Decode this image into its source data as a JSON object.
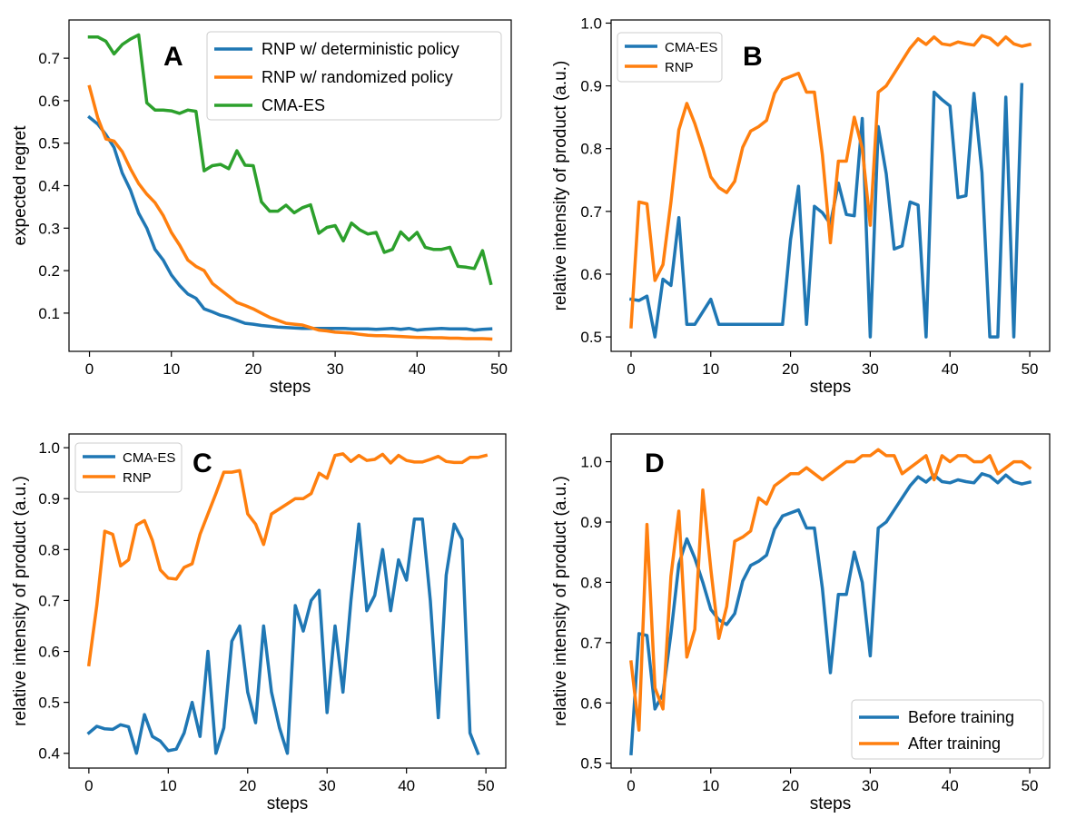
{
  "colors": {
    "blue": "#1f77b4",
    "orange": "#ff7f0e",
    "green": "#2ca02c"
  },
  "chart_data": [
    {
      "panel": "A",
      "type": "line",
      "xlabel": "steps",
      "ylabel": "expected regret",
      "xlim": [
        -2.5,
        51.5
      ],
      "ylim": [
        0.01,
        0.79
      ],
      "xticks": [
        0,
        10,
        20,
        30,
        40,
        50
      ],
      "yticks": [
        0.1,
        0.2,
        0.3,
        0.4,
        0.5,
        0.6,
        0.7
      ],
      "ytick_labels": [
        "0.1",
        "0.2",
        "0.3",
        "0.4",
        "0.5",
        "0.6",
        "0.7"
      ],
      "legend_position": "top-right",
      "series": [
        {
          "name": "RNP w/ deterministic policy",
          "color": "#1f77b4",
          "x": [
            0,
            1,
            2,
            3,
            4,
            5,
            6,
            7,
            8,
            9,
            10,
            11,
            12,
            13,
            14,
            15,
            16,
            17,
            18,
            19,
            20,
            21,
            22,
            23,
            24,
            25,
            26,
            27,
            28,
            29,
            30,
            31,
            32,
            33,
            34,
            35,
            36,
            37,
            38,
            39,
            40,
            41,
            42,
            43,
            44,
            45,
            46,
            47,
            48,
            49
          ],
          "y": [
            0.561,
            0.545,
            0.52,
            0.49,
            0.43,
            0.39,
            0.335,
            0.3,
            0.25,
            0.225,
            0.19,
            0.165,
            0.145,
            0.135,
            0.11,
            0.103,
            0.095,
            0.09,
            0.083,
            0.076,
            0.074,
            0.071,
            0.069,
            0.067,
            0.066,
            0.065,
            0.064,
            0.064,
            0.064,
            0.064,
            0.064,
            0.064,
            0.063,
            0.063,
            0.063,
            0.062,
            0.063,
            0.064,
            0.062,
            0.064,
            0.06,
            0.062,
            0.063,
            0.064,
            0.063,
            0.063,
            0.063,
            0.06,
            0.062,
            0.063
          ]
        },
        {
          "name": "RNP w/ randomized policy",
          "color": "#ff7f0e",
          "x": [
            0,
            1,
            2,
            3,
            4,
            5,
            6,
            7,
            8,
            9,
            10,
            11,
            12,
            13,
            14,
            15,
            16,
            17,
            18,
            19,
            20,
            21,
            22,
            23,
            24,
            25,
            26,
            27,
            28,
            29,
            30,
            31,
            32,
            33,
            34,
            35,
            36,
            37,
            38,
            39,
            40,
            41,
            42,
            43,
            44,
            45,
            46,
            47,
            48,
            49
          ],
          "y": [
            0.633,
            0.56,
            0.51,
            0.505,
            0.48,
            0.44,
            0.405,
            0.38,
            0.36,
            0.33,
            0.29,
            0.26,
            0.225,
            0.21,
            0.2,
            0.17,
            0.155,
            0.14,
            0.125,
            0.118,
            0.11,
            0.1,
            0.09,
            0.083,
            0.076,
            0.074,
            0.072,
            0.066,
            0.06,
            0.058,
            0.055,
            0.054,
            0.053,
            0.05,
            0.048,
            0.047,
            0.047,
            0.046,
            0.045,
            0.044,
            0.043,
            0.043,
            0.042,
            0.042,
            0.041,
            0.041,
            0.04,
            0.04,
            0.04,
            0.039
          ]
        },
        {
          "name": "CMA-ES",
          "color": "#2ca02c",
          "x": [
            0,
            1,
            2,
            3,
            4,
            5,
            6,
            7,
            8,
            9,
            10,
            11,
            12,
            13,
            14,
            15,
            16,
            17,
            18,
            19,
            20,
            21,
            22,
            23,
            24,
            25,
            26,
            27,
            28,
            29,
            30,
            31,
            32,
            33,
            34,
            35,
            36,
            37,
            38,
            39,
            40,
            41,
            42,
            43,
            44,
            45,
            46,
            47,
            48,
            49
          ],
          "y": [
            0.75,
            0.75,
            0.74,
            0.71,
            0.732,
            0.745,
            0.755,
            0.595,
            0.578,
            0.578,
            0.576,
            0.57,
            0.578,
            0.575,
            0.435,
            0.447,
            0.45,
            0.44,
            0.482,
            0.448,
            0.447,
            0.362,
            0.34,
            0.34,
            0.354,
            0.336,
            0.348,
            0.355,
            0.288,
            0.302,
            0.306,
            0.27,
            0.312,
            0.296,
            0.286,
            0.29,
            0.243,
            0.25,
            0.291,
            0.272,
            0.29,
            0.255,
            0.25,
            0.25,
            0.255,
            0.21,
            0.208,
            0.205,
            0.247,
            0.17
          ]
        }
      ]
    },
    {
      "panel": "B",
      "type": "line",
      "xlabel": "steps",
      "ylabel": "relative intensity of product (a.u.)",
      "xlim": [
        -2.5,
        52.5
      ],
      "ylim": [
        0.477,
        1.005
      ],
      "xticks": [
        0,
        10,
        20,
        30,
        40,
        50
      ],
      "yticks": [
        0.5,
        0.6,
        0.7,
        0.8,
        0.9,
        1.0
      ],
      "ytick_labels": [
        "0.5",
        "0.6",
        "0.7",
        "0.8",
        "0.9",
        "1.0"
      ],
      "legend_position": "top-left",
      "series": [
        {
          "name": "CMA-ES",
          "color": "#1f77b4",
          "x": [
            0,
            1,
            2,
            3,
            4,
            5,
            6,
            7,
            8,
            9,
            10,
            11,
            12,
            13,
            14,
            15,
            16,
            17,
            18,
            19,
            20,
            21,
            22,
            23,
            24,
            25,
            26,
            27,
            28,
            29,
            30,
            31,
            32,
            33,
            34,
            35,
            36,
            37,
            38,
            39,
            40,
            41,
            42,
            43,
            44,
            45,
            46,
            47,
            48,
            49
          ],
          "y": [
            0.56,
            0.558,
            0.565,
            0.5,
            0.592,
            0.582,
            0.69,
            0.52,
            0.52,
            0.54,
            0.56,
            0.52,
            0.52,
            0.52,
            0.52,
            0.52,
            0.52,
            0.52,
            0.52,
            0.52,
            0.655,
            0.74,
            0.52,
            0.708,
            0.698,
            0.68,
            0.745,
            0.695,
            0.693,
            0.848,
            0.5,
            0.835,
            0.76,
            0.64,
            0.645,
            0.715,
            0.71,
            0.5,
            0.89,
            0.878,
            0.868,
            0.722,
            0.725,
            0.888,
            0.762,
            0.5,
            0.5,
            0.882,
            0.5,
            0.902
          ]
        },
        {
          "name": "RNP",
          "color": "#ff7f0e",
          "x": [
            0,
            1,
            2,
            3,
            4,
            5,
            6,
            7,
            8,
            9,
            10,
            11,
            12,
            13,
            14,
            15,
            16,
            17,
            18,
            19,
            20,
            21,
            22,
            23,
            24,
            25,
            26,
            27,
            28,
            29,
            30,
            31,
            32,
            33,
            34,
            35,
            36,
            37,
            38,
            39,
            40,
            41,
            42,
            43,
            44,
            45,
            46,
            47,
            48,
            49,
            50
          ],
          "y": [
            0.516,
            0.715,
            0.712,
            0.59,
            0.615,
            0.715,
            0.83,
            0.872,
            0.84,
            0.8,
            0.755,
            0.738,
            0.73,
            0.748,
            0.802,
            0.828,
            0.835,
            0.845,
            0.888,
            0.91,
            0.915,
            0.92,
            0.89,
            0.89,
            0.79,
            0.65,
            0.78,
            0.78,
            0.85,
            0.8,
            0.678,
            0.89,
            0.9,
            0.92,
            0.94,
            0.96,
            0.975,
            0.966,
            0.978,
            0.967,
            0.965,
            0.97,
            0.967,
            0.965,
            0.98,
            0.976,
            0.965,
            0.978,
            0.967,
            0.963,
            0.966
          ]
        }
      ]
    },
    {
      "panel": "C",
      "type": "line",
      "xlabel": "steps",
      "ylabel": "relative intensity of product (a.u.)",
      "xlim": [
        -2.5,
        52.5
      ],
      "ylim": [
        0.371,
        1.027
      ],
      "xticks": [
        0,
        10,
        20,
        30,
        40,
        50
      ],
      "yticks": [
        0.4,
        0.5,
        0.6,
        0.7,
        0.8,
        0.9,
        1.0
      ],
      "ytick_labels": [
        "0.4",
        "0.5",
        "0.6",
        "0.7",
        "0.8",
        "0.9",
        "1.0"
      ],
      "legend_position": "top-left",
      "series": [
        {
          "name": "CMA-ES",
          "color": "#1f77b4",
          "x": [
            0,
            1,
            2,
            3,
            4,
            5,
            6,
            7,
            8,
            9,
            10,
            11,
            12,
            13,
            14,
            15,
            16,
            17,
            18,
            19,
            20,
            21,
            22,
            23,
            24,
            25,
            26,
            27,
            28,
            29,
            30,
            31,
            32,
            33,
            34,
            35,
            36,
            37,
            38,
            39,
            40,
            41,
            42,
            43,
            44,
            45,
            46,
            47,
            48,
            49
          ],
          "y": [
            0.44,
            0.453,
            0.448,
            0.447,
            0.456,
            0.452,
            0.4,
            0.476,
            0.433,
            0.424,
            0.405,
            0.408,
            0.44,
            0.5,
            0.433,
            0.6,
            0.4,
            0.45,
            0.62,
            0.65,
            0.52,
            0.46,
            0.65,
            0.52,
            0.45,
            0.4,
            0.69,
            0.64,
            0.7,
            0.72,
            0.48,
            0.65,
            0.52,
            0.7,
            0.85,
            0.68,
            0.71,
            0.8,
            0.68,
            0.78,
            0.74,
            0.86,
            0.86,
            0.7,
            0.47,
            0.75,
            0.85,
            0.82,
            0.44,
            0.4
          ]
        },
        {
          "name": "RNP",
          "color": "#ff7f0e",
          "x": [
            0,
            1,
            2,
            3,
            4,
            5,
            6,
            7,
            8,
            9,
            10,
            11,
            12,
            13,
            14,
            15,
            16,
            17,
            18,
            19,
            20,
            21,
            22,
            23,
            24,
            25,
            26,
            27,
            28,
            29,
            30,
            31,
            32,
            33,
            34,
            35,
            36,
            37,
            38,
            39,
            40,
            41,
            42,
            43,
            44,
            45,
            46,
            47,
            48,
            49,
            50
          ],
          "y": [
            0.574,
            0.69,
            0.836,
            0.83,
            0.768,
            0.78,
            0.848,
            0.857,
            0.818,
            0.76,
            0.744,
            0.742,
            0.765,
            0.772,
            0.83,
            0.87,
            0.91,
            0.952,
            0.952,
            0.955,
            0.87,
            0.85,
            0.81,
            0.87,
            0.88,
            0.89,
            0.9,
            0.9,
            0.91,
            0.95,
            0.94,
            0.985,
            0.988,
            0.973,
            0.985,
            0.975,
            0.977,
            0.987,
            0.97,
            0.985,
            0.975,
            0.972,
            0.972,
            0.977,
            0.983,
            0.973,
            0.971,
            0.971,
            0.981,
            0.981,
            0.985
          ]
        }
      ]
    },
    {
      "panel": "D",
      "type": "line",
      "xlabel": "steps",
      "ylabel": "relative intensity of product (a.u.)",
      "xlim": [
        -2.5,
        52.5
      ],
      "ylim": [
        0.492,
        1.046
      ],
      "xticks": [
        0,
        10,
        20,
        30,
        40,
        50
      ],
      "yticks": [
        0.5,
        0.6,
        0.7,
        0.8,
        0.9,
        1.0
      ],
      "ytick_labels": [
        "0.5",
        "0.6",
        "0.7",
        "0.8",
        "0.9",
        "1.0"
      ],
      "legend_position": "bottom-right",
      "series": [
        {
          "name": "Before training",
          "color": "#1f77b4",
          "x": [
            0,
            1,
            2,
            3,
            4,
            5,
            6,
            7,
            8,
            9,
            10,
            11,
            12,
            13,
            14,
            15,
            16,
            17,
            18,
            19,
            20,
            21,
            22,
            23,
            24,
            25,
            26,
            27,
            28,
            29,
            30,
            31,
            32,
            33,
            34,
            35,
            36,
            37,
            38,
            39,
            40,
            41,
            42,
            43,
            44,
            45,
            46,
            47,
            48,
            49,
            50
          ],
          "y": [
            0.516,
            0.715,
            0.712,
            0.59,
            0.615,
            0.715,
            0.83,
            0.872,
            0.84,
            0.8,
            0.755,
            0.738,
            0.73,
            0.748,
            0.802,
            0.828,
            0.835,
            0.845,
            0.888,
            0.91,
            0.915,
            0.92,
            0.89,
            0.89,
            0.79,
            0.65,
            0.78,
            0.78,
            0.85,
            0.8,
            0.678,
            0.89,
            0.9,
            0.92,
            0.94,
            0.96,
            0.975,
            0.966,
            0.978,
            0.967,
            0.965,
            0.97,
            0.967,
            0.965,
            0.98,
            0.976,
            0.965,
            0.978,
            0.967,
            0.963,
            0.966
          ]
        },
        {
          "name": "After training",
          "color": "#ff7f0e",
          "x": [
            0,
            1,
            2,
            3,
            4,
            5,
            6,
            7,
            8,
            9,
            10,
            11,
            12,
            13,
            14,
            15,
            16,
            17,
            18,
            19,
            20,
            21,
            22,
            23,
            24,
            25,
            26,
            27,
            28,
            29,
            30,
            31,
            32,
            33,
            34,
            35,
            36,
            37,
            38,
            39,
            40,
            41,
            42,
            43,
            44,
            45,
            46,
            47,
            48,
            49,
            50
          ],
          "y": [
            0.668,
            0.555,
            0.896,
            0.625,
            0.59,
            0.81,
            0.918,
            0.676,
            0.722,
            0.953,
            0.822,
            0.707,
            0.76,
            0.868,
            0.875,
            0.885,
            0.94,
            0.93,
            0.96,
            0.97,
            0.98,
            0.98,
            0.99,
            0.98,
            0.97,
            0.98,
            0.99,
            1.0,
            1.0,
            1.01,
            1.01,
            1.02,
            1.01,
            1.01,
            0.98,
            0.99,
            1.0,
            1.01,
            0.97,
            1.01,
            1.0,
            1.01,
            1.01,
            1.0,
            1.0,
            1.01,
            0.98,
            0.99,
            1.0,
            1.0,
            0.99
          ]
        }
      ]
    }
  ]
}
